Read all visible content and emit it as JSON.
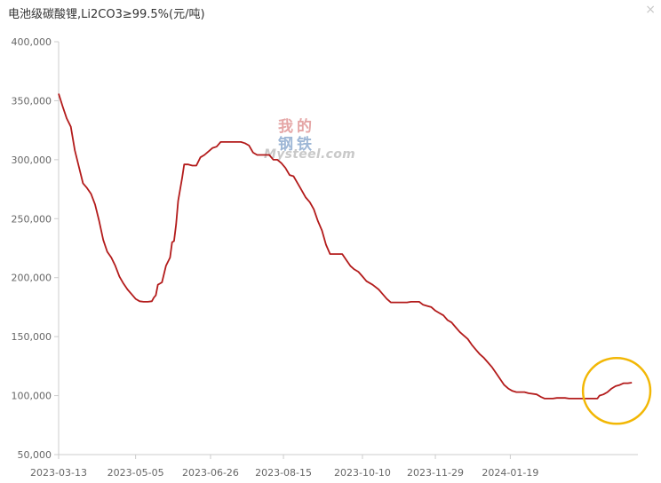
{
  "header": {
    "title": "电池级碳酸锂,Li2CO3≥99.5%(元/吨)",
    "close_label": "×"
  },
  "watermark": {
    "chars": [
      "我",
      "的",
      "钢",
      "铁"
    ],
    "text": "Mysteel.com"
  },
  "colors": {
    "line": "#b31b1b",
    "highlight_circle": "#f2b705",
    "axis": "#cccccc",
    "label": "#666666"
  },
  "chart_data": {
    "type": "line",
    "title": "电池级碳酸锂,Li2CO3≥99.5%(元/吨)",
    "xlabel": "",
    "ylabel": "",
    "ylim": [
      50000,
      400000
    ],
    "y_ticks": [
      50000,
      100000,
      150000,
      200000,
      250000,
      300000,
      350000,
      400000
    ],
    "y_tick_labels": [
      "50,000",
      "100,000",
      "150,000",
      "200,000",
      "250,000",
      "300,000",
      "350,000",
      "400,000"
    ],
    "x_tick_labels": [
      "2023-03-13",
      "2023-05-05",
      "2023-06-26",
      "2023-08-15",
      "2023-10-10",
      "2023-11-29",
      "2024-01-19"
    ],
    "x_tick_index": [
      0,
      38,
      75,
      111,
      150,
      186,
      223
    ],
    "x_range_index": [
      0,
      286
    ],
    "grid": false,
    "annotation": "circle around latest upturn",
    "annotation_range_index": [
      265,
      286
    ],
    "annotation_value_range": [
      97000,
      111000
    ],
    "series": [
      {
        "points": [
          [
            0,
            356000
          ],
          [
            2,
            345000
          ],
          [
            4,
            335000
          ],
          [
            6,
            328000
          ],
          [
            8,
            308000
          ],
          [
            10,
            294000
          ],
          [
            12,
            280000
          ],
          [
            14,
            276000
          ],
          [
            16,
            271000
          ],
          [
            18,
            262000
          ],
          [
            20,
            248000
          ],
          [
            22,
            232000
          ],
          [
            24,
            222000
          ],
          [
            26,
            217000
          ],
          [
            28,
            210000
          ],
          [
            30,
            201000
          ],
          [
            32,
            195000
          ],
          [
            34,
            190000
          ],
          [
            36,
            186000
          ],
          [
            38,
            182000
          ],
          [
            40,
            180000
          ],
          [
            42,
            179500
          ],
          [
            44,
            179500
          ],
          [
            46,
            180000
          ],
          [
            47,
            183000
          ],
          [
            48,
            185000
          ],
          [
            49,
            194000
          ],
          [
            50,
            195000
          ],
          [
            51,
            196000
          ],
          [
            53,
            210000
          ],
          [
            55,
            217000
          ],
          [
            56,
            230000
          ],
          [
            57,
            231000
          ],
          [
            58,
            245000
          ],
          [
            59,
            265000
          ],
          [
            60,
            275000
          ],
          [
            61,
            285000
          ],
          [
            62,
            296000
          ],
          [
            64,
            296000
          ],
          [
            66,
            295000
          ],
          [
            68,
            295000
          ],
          [
            70,
            302000
          ],
          [
            72,
            304000
          ],
          [
            74,
            307000
          ],
          [
            76,
            310000
          ],
          [
            78,
            311000
          ],
          [
            80,
            315000
          ],
          [
            85,
            315000
          ],
          [
            90,
            315000
          ],
          [
            92,
            314000
          ],
          [
            94,
            312000
          ],
          [
            96,
            306000
          ],
          [
            98,
            304000
          ],
          [
            104,
            304000
          ],
          [
            106,
            300000
          ],
          [
            108,
            300000
          ],
          [
            110,
            297000
          ],
          [
            112,
            293000
          ],
          [
            114,
            287000
          ],
          [
            116,
            286000
          ],
          [
            118,
            280000
          ],
          [
            120,
            274000
          ],
          [
            122,
            268000
          ],
          [
            124,
            264000
          ],
          [
            126,
            258000
          ],
          [
            128,
            248000
          ],
          [
            130,
            240000
          ],
          [
            132,
            228000
          ],
          [
            134,
            220000
          ],
          [
            136,
            220000
          ],
          [
            140,
            220000
          ],
          [
            142,
            215000
          ],
          [
            144,
            210000
          ],
          [
            146,
            207000
          ],
          [
            148,
            205000
          ],
          [
            150,
            201000
          ],
          [
            152,
            197000
          ],
          [
            155,
            194000
          ],
          [
            158,
            190000
          ],
          [
            160,
            186000
          ],
          [
            162,
            182000
          ],
          [
            164,
            179000
          ],
          [
            168,
            179000
          ],
          [
            172,
            179000
          ],
          [
            174,
            179500
          ],
          [
            178,
            179500
          ],
          [
            180,
            177000
          ],
          [
            182,
            176000
          ],
          [
            184,
            175000
          ],
          [
            186,
            172000
          ],
          [
            188,
            170000
          ],
          [
            190,
            168000
          ],
          [
            192,
            164000
          ],
          [
            194,
            162000
          ],
          [
            196,
            158000
          ],
          [
            198,
            154000
          ],
          [
            200,
            151000
          ],
          [
            202,
            148000
          ],
          [
            204,
            143000
          ],
          [
            206,
            139000
          ],
          [
            208,
            135000
          ],
          [
            210,
            132000
          ],
          [
            212,
            128000
          ],
          [
            214,
            124000
          ],
          [
            216,
            119000
          ],
          [
            218,
            114000
          ],
          [
            220,
            109000
          ],
          [
            222,
            106000
          ],
          [
            224,
            104000
          ],
          [
            226,
            103000
          ],
          [
            230,
            103000
          ],
          [
            232,
            102000
          ],
          [
            236,
            101000
          ],
          [
            238,
            99000
          ],
          [
            240,
            97500
          ],
          [
            244,
            97500
          ],
          [
            246,
            98000
          ],
          [
            250,
            98000
          ],
          [
            252,
            97500
          ],
          [
            256,
            97500
          ],
          [
            260,
            97500
          ],
          [
            264,
            97500
          ],
          [
            266,
            97500
          ],
          [
            267,
            100000
          ],
          [
            269,
            101000
          ],
          [
            271,
            103000
          ],
          [
            273,
            106000
          ],
          [
            275,
            108000
          ],
          [
            277,
            109000
          ],
          [
            279,
            110500
          ],
          [
            281,
            110500
          ],
          [
            283,
            111000
          ]
        ]
      }
    ]
  }
}
